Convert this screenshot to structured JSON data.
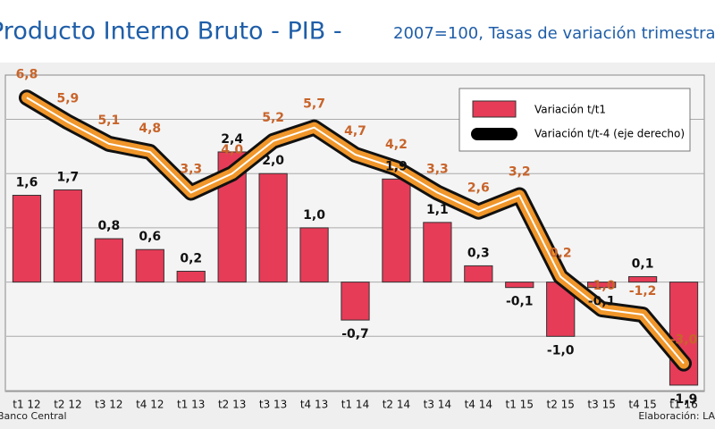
{
  "chart_data": {
    "type": "bar-line",
    "title": "Producto Interno Bruto - PIB -",
    "subtitle": "2007=100, Tasas de variación trimestral",
    "source": "Banco Central",
    "credit": "Elaboración: LA",
    "categories": [
      "t1 12",
      "t2 12",
      "t3 12",
      "t4 12",
      "t1 13",
      "t2 13",
      "t3 13",
      "t4 13",
      "t1 14",
      "t2 14",
      "t3 14",
      "t4 14",
      "t1 15",
      "t2 15",
      "t3 15",
      "t4 15",
      "t1 16"
    ],
    "series": [
      {
        "name": "Variación t/t1",
        "type": "bar",
        "color": "#e63c58",
        "values": [
          1.6,
          1.7,
          0.8,
          0.6,
          0.2,
          2.4,
          2.0,
          1.0,
          -0.7,
          1.9,
          1.1,
          0.3,
          -0.1,
          -1.0,
          -0.1,
          0.1,
          -1.9
        ],
        "value_labels": [
          "1,6",
          "1,7",
          "0,8",
          "0,6",
          "0,2",
          "2,4",
          "2,0",
          "1,0",
          "-0,7",
          "1,9",
          "1,1",
          "0,3",
          "-0,1",
          "-1,0",
          "-0,1",
          "0,1",
          "-1,9"
        ]
      },
      {
        "name": "Variación t/t-4 (eje derecho)",
        "type": "line",
        "axis": "y2",
        "color": "#f0962a",
        "values": [
          6.8,
          5.9,
          5.1,
          4.8,
          3.3,
          4.0,
          5.2,
          5.7,
          4.7,
          4.2,
          3.3,
          2.6,
          3.2,
          0.2,
          -1.0,
          -1.2,
          -3.0
        ],
        "value_labels": [
          "6,8",
          "5,9",
          "5,1",
          "4,8",
          "3,3",
          "4,0",
          "5,2",
          "5,7",
          "4,7",
          "4,2",
          "3,3",
          "2,6",
          "3,2",
          "0,2",
          "-1,0",
          "-1,2",
          "-3,0"
        ]
      }
    ],
    "ylim": [
      -2,
      3.8
    ],
    "yticks": [
      -2,
      -1,
      0,
      1,
      2,
      3
    ],
    "y2lim": [
      -4,
      7.6
    ],
    "grid": true
  }
}
